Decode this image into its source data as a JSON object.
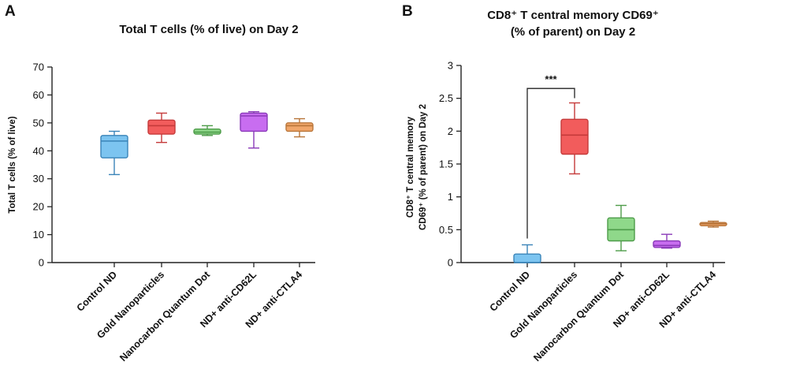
{
  "chart_data": [
    {
      "panel": "A",
      "type": "box",
      "title": "Total T cells (% of live) on Day 2",
      "xlabel": "",
      "ylabel": "Total T cells (% of live)",
      "ylim": [
        0,
        70
      ],
      "yticks": [
        0,
        10,
        20,
        30,
        40,
        50,
        60,
        70
      ],
      "ytick_labels": [
        "0",
        "10",
        "20",
        "30",
        "40",
        "50",
        "60",
        "70"
      ],
      "categories": [
        "Control ND",
        "Gold Nanoparticles",
        "Nanocarbon Quantum Dot",
        "ND+ anti-CD62L",
        "ND+ anti-CTLA4"
      ],
      "colors": [
        "#7cc4f0",
        "#f25c5c",
        "#8fd88a",
        "#c86df0",
        "#f0a66a"
      ],
      "edge_colors": [
        "#3a84b8",
        "#c53a3a",
        "#4e9c4a",
        "#8a3ab8",
        "#b8753a"
      ],
      "boxes": [
        {
          "min": 31.5,
          "q1": 37.5,
          "median": 43.5,
          "q3": 45.5,
          "max": 47
        },
        {
          "min": 43,
          "q1": 46,
          "median": 49,
          "q3": 51,
          "max": 53.5
        },
        {
          "min": 45.5,
          "q1": 46,
          "median": 46.7,
          "q3": 47.8,
          "max": 49
        },
        {
          "min": 41,
          "q1": 47,
          "median": 52.5,
          "q3": 53.5,
          "max": 54
        },
        {
          "min": 45,
          "q1": 47,
          "median": 49,
          "q3": 50,
          "max": 51.5
        }
      ]
    },
    {
      "panel": "B",
      "type": "box",
      "title": "CD8⁺ T central memory CD69⁺",
      "subtitle": "(% of parent) on Day 2",
      "xlabel": "",
      "ylabel": "CD8⁺ T central memory",
      "ylabel2": "CD69⁺ (% of parent) on Day 2",
      "ylim": [
        0,
        3
      ],
      "yticks": [
        0,
        0.5,
        1,
        1.5,
        2,
        2.5,
        3
      ],
      "ytick_labels": [
        "0",
        "0.5",
        "1",
        "1.5",
        "2",
        "2.5",
        "3"
      ],
      "categories": [
        "Control ND",
        "Gold Nanoparticles",
        "Nanocarbon Quantum Dot",
        "ND+ anti-CD62L",
        "ND+ anti-CTLA4"
      ],
      "colors": [
        "#7cc4f0",
        "#f25c5c",
        "#8fd88a",
        "#c86df0",
        "#f0a66a"
      ],
      "edge_colors": [
        "#3a84b8",
        "#c53a3a",
        "#4e9c4a",
        "#8a3ab8",
        "#b8753a"
      ],
      "boxes": [
        {
          "min": 0.0,
          "q1": 0.0,
          "median": 0.0,
          "q3": 0.13,
          "max": 0.27
        },
        {
          "min": 1.35,
          "q1": 1.65,
          "median": 1.94,
          "q3": 2.18,
          "max": 2.43
        },
        {
          "min": 0.18,
          "q1": 0.33,
          "median": 0.5,
          "q3": 0.68,
          "max": 0.87
        },
        {
          "min": 0.22,
          "q1": 0.23,
          "median": 0.26,
          "q3": 0.33,
          "max": 0.43
        },
        {
          "min": 0.54,
          "q1": 0.56,
          "median": 0.59,
          "q3": 0.61,
          "max": 0.63
        }
      ],
      "annotations": [
        {
          "type": "significance",
          "label": "***",
          "from": 0,
          "to": 1,
          "y": 2.65
        }
      ]
    }
  ]
}
